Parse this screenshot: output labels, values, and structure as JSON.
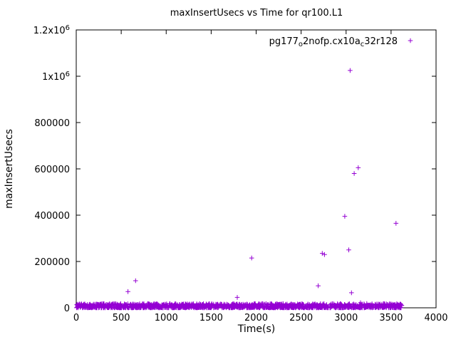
{
  "chart_data": {
    "type": "scatter",
    "title": "maxInsertUsecs vs Time for qr100.L1",
    "xlabel": "Time(s)",
    "ylabel": "maxInsertUsecs",
    "xlim": [
      0,
      4000
    ],
    "ylim": [
      0,
      1200000
    ],
    "grid": false,
    "legend_position": "top-right-inside",
    "x_ticks": [
      0,
      500,
      1000,
      1500,
      2000,
      2500,
      3000,
      3500,
      4000
    ],
    "x_tick_labels": [
      "0",
      "500",
      "1000",
      "1500",
      "2000",
      "2500",
      "3000",
      "3500",
      "4000"
    ],
    "y_ticks": [
      0,
      200000,
      400000,
      600000,
      800000,
      1000000,
      1200000
    ],
    "y_tick_labels": [
      "0",
      "200000",
      "400000",
      "600000",
      "800000",
      "1x10^6",
      "1.2x10^6"
    ],
    "series_color": "#9400d3",
    "marker": "plus",
    "legend": {
      "plain_label": "pg177_o2nofp.cx10a_c32r128",
      "segments": [
        {
          "t": "pg177",
          "sub": false
        },
        {
          "t": "o",
          "sub": true
        },
        {
          "t": "2nofp.cx10a",
          "sub": false
        },
        {
          "t": "c",
          "sub": true
        },
        {
          "t": "32r128",
          "sub": false
        }
      ]
    },
    "outliers": [
      [
        575,
        70000
      ],
      [
        660,
        117000
      ],
      [
        1790,
        45000
      ],
      [
        1950,
        215000
      ],
      [
        2690,
        95000
      ],
      [
        2735,
        235000
      ],
      [
        2760,
        230000
      ],
      [
        2985,
        395000
      ],
      [
        3030,
        250000
      ],
      [
        3045,
        1025000
      ],
      [
        3060,
        65000
      ],
      [
        3090,
        580000
      ],
      [
        3135,
        605000
      ],
      [
        3160,
        22000
      ],
      [
        3230,
        18000
      ],
      [
        3555,
        365000
      ],
      [
        3580,
        12000
      ]
    ],
    "dense_band": {
      "description": "dense cloud of samples hugging the x-axis",
      "x_min": 0,
      "x_max": 3620,
      "y_min": 0,
      "y_max": 18000,
      "count": 1600,
      "seed": 42
    }
  }
}
